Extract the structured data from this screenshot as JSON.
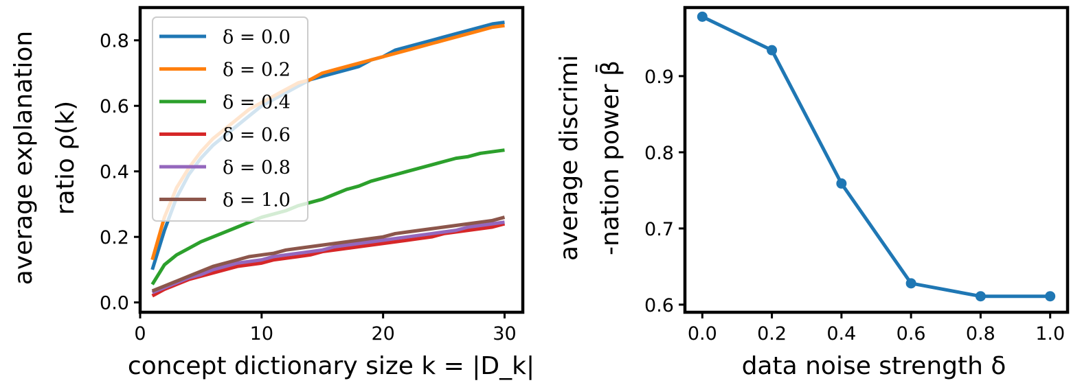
{
  "chart_data": [
    {
      "type": "line",
      "title": "",
      "xlabel": "concept dictionary size k = |D_k|",
      "ylabel_line1": "average explanation",
      "ylabel_line2": "ratio ρ(k)",
      "xlim": [
        0,
        31.5
      ],
      "ylim": [
        -0.03,
        0.9
      ],
      "xticks": [
        0,
        10,
        20,
        30
      ],
      "xtick_labels": [
        "0",
        "10",
        "20",
        "30"
      ],
      "yticks": [
        0.0,
        0.2,
        0.4,
        0.6,
        0.8
      ],
      "ytick_labels": [
        "0.0",
        "0.2",
        "0.4",
        "0.6",
        "0.8"
      ],
      "grid": false,
      "legend_position": "top-left",
      "x": [
        1,
        2,
        3,
        4,
        5,
        6,
        7,
        8,
        9,
        10,
        11,
        12,
        13,
        14,
        15,
        16,
        17,
        18,
        19,
        20,
        21,
        22,
        23,
        24,
        25,
        26,
        27,
        28,
        29,
        30
      ],
      "series": [
        {
          "name": "δ = 0.0",
          "color": "#1f77b4",
          "values": [
            0.1,
            0.22,
            0.32,
            0.39,
            0.44,
            0.48,
            0.51,
            0.54,
            0.57,
            0.6,
            0.62,
            0.64,
            0.66,
            0.68,
            0.69,
            0.7,
            0.71,
            0.72,
            0.74,
            0.75,
            0.77,
            0.78,
            0.79,
            0.8,
            0.81,
            0.82,
            0.83,
            0.84,
            0.85,
            0.855
          ]
        },
        {
          "name": "δ = 0.2",
          "color": "#ff7f0e",
          "values": [
            0.13,
            0.26,
            0.35,
            0.41,
            0.46,
            0.5,
            0.53,
            0.56,
            0.59,
            0.61,
            0.63,
            0.65,
            0.67,
            0.68,
            0.7,
            0.71,
            0.72,
            0.73,
            0.74,
            0.75,
            0.76,
            0.77,
            0.78,
            0.79,
            0.8,
            0.81,
            0.82,
            0.83,
            0.84,
            0.845
          ]
        },
        {
          "name": "δ = 0.4",
          "color": "#2ca02c",
          "values": [
            0.055,
            0.115,
            0.145,
            0.165,
            0.185,
            0.2,
            0.215,
            0.23,
            0.245,
            0.26,
            0.27,
            0.28,
            0.295,
            0.305,
            0.315,
            0.33,
            0.345,
            0.355,
            0.37,
            0.38,
            0.39,
            0.4,
            0.41,
            0.42,
            0.43,
            0.44,
            0.445,
            0.455,
            0.46,
            0.465
          ]
        },
        {
          "name": "δ = 0.6",
          "color": "#d62728",
          "values": [
            0.02,
            0.04,
            0.055,
            0.07,
            0.08,
            0.09,
            0.1,
            0.11,
            0.115,
            0.12,
            0.13,
            0.135,
            0.14,
            0.145,
            0.155,
            0.16,
            0.165,
            0.17,
            0.175,
            0.18,
            0.185,
            0.19,
            0.195,
            0.2,
            0.21,
            0.215,
            0.22,
            0.225,
            0.23,
            0.24
          ]
        },
        {
          "name": "δ = 0.8",
          "color": "#9467bd",
          "values": [
            0.03,
            0.045,
            0.06,
            0.075,
            0.085,
            0.1,
            0.11,
            0.12,
            0.125,
            0.13,
            0.14,
            0.145,
            0.15,
            0.155,
            0.16,
            0.17,
            0.175,
            0.18,
            0.185,
            0.19,
            0.195,
            0.2,
            0.205,
            0.21,
            0.215,
            0.22,
            0.23,
            0.235,
            0.24,
            0.245
          ]
        },
        {
          "name": "δ = 1.0",
          "color": "#8c564b",
          "values": [
            0.035,
            0.05,
            0.065,
            0.08,
            0.095,
            0.11,
            0.12,
            0.13,
            0.14,
            0.145,
            0.15,
            0.16,
            0.165,
            0.17,
            0.175,
            0.18,
            0.185,
            0.19,
            0.195,
            0.2,
            0.21,
            0.215,
            0.22,
            0.225,
            0.23,
            0.235,
            0.24,
            0.245,
            0.25,
            0.26
          ]
        }
      ]
    },
    {
      "type": "line",
      "title": "",
      "xlabel": "data noise strength δ",
      "ylabel_line1": "average discrimi",
      "ylabel_line2": "-nation power β̄",
      "xlim": [
        -0.05,
        1.05
      ],
      "ylim": [
        0.59,
        0.99
      ],
      "xticks": [
        0.0,
        0.2,
        0.4,
        0.6,
        0.8,
        1.0
      ],
      "xtick_labels": [
        "0.0",
        "0.2",
        "0.4",
        "0.6",
        "0.8",
        "1.0"
      ],
      "yticks": [
        0.6,
        0.7,
        0.8,
        0.9
      ],
      "ytick_labels": [
        "0.6",
        "0.7",
        "0.8",
        "0.9"
      ],
      "grid": false,
      "x": [
        0.0,
        0.2,
        0.4,
        0.6,
        0.8,
        1.0
      ],
      "series": [
        {
          "name": "average discrimination power",
          "color": "#1f77b4",
          "markers": true,
          "values": [
            0.978,
            0.934,
            0.759,
            0.628,
            0.611,
            0.611
          ]
        }
      ]
    }
  ]
}
